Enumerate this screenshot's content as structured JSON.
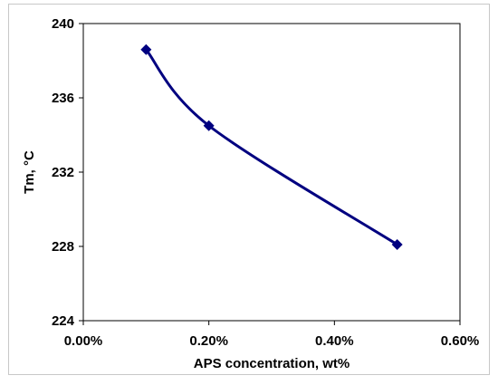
{
  "chart_data": {
    "type": "line",
    "title": "",
    "xlabel": "APS concentration, wt%",
    "ylabel": "Tm, °C",
    "xlim": [
      0,
      0.6
    ],
    "ylim": [
      224,
      240
    ],
    "x_ticks": [
      0,
      0.2,
      0.4,
      0.6
    ],
    "x_tick_labels": [
      "0.00%",
      "0.20%",
      "0.40%",
      "0.60%"
    ],
    "y_ticks": [
      224,
      228,
      232,
      236,
      240
    ],
    "y_tick_labels": [
      "224",
      "228",
      "232",
      "236",
      "240"
    ],
    "grid": false,
    "legend": "none",
    "series": [
      {
        "x": [
          0.1,
          0.2,
          0.5
        ],
        "y": [
          238.6,
          234.5,
          228.1
        ],
        "color": "#000080",
        "marker": "diamond",
        "smooth": true
      }
    ]
  }
}
